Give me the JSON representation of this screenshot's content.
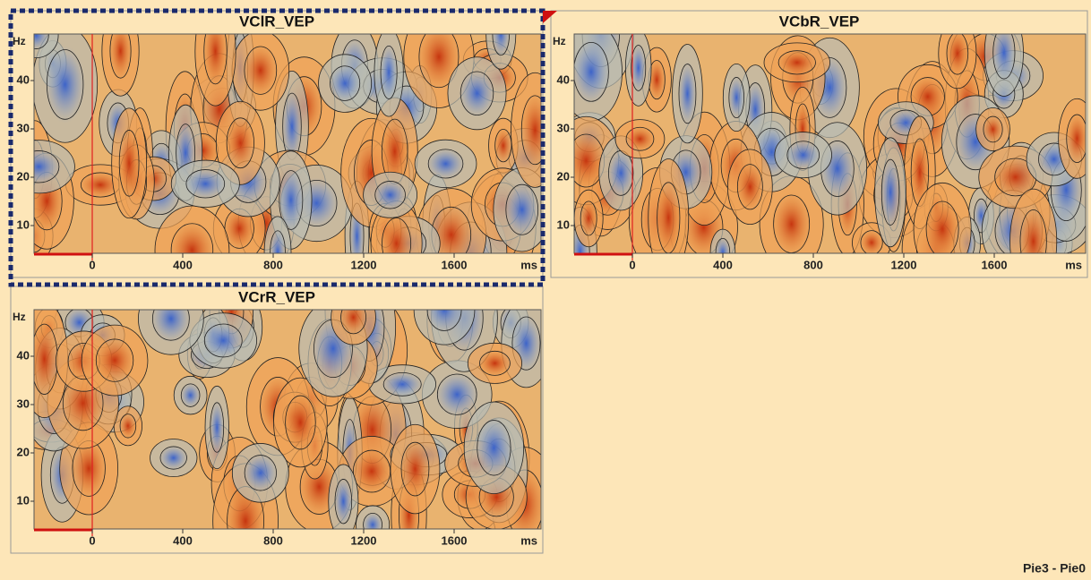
{
  "panels": [
    {
      "title": "VClR_VEP",
      "y_unit": "Hz",
      "x_unit": "ms",
      "yticks": [
        "40",
        "30",
        "20",
        "10"
      ],
      "xticks": [
        "0",
        "400",
        "800",
        "1200",
        "1600"
      ]
    },
    {
      "title": "VCbR_VEP",
      "y_unit": "Hz",
      "x_unit": "ms",
      "yticks": [
        "40",
        "30",
        "20",
        "10"
      ],
      "xticks": [
        "0",
        "400",
        "800",
        "1200",
        "1600"
      ]
    },
    {
      "title": "VCrR_VEP",
      "y_unit": "Hz",
      "x_unit": "ms",
      "yticks": [
        "40",
        "30",
        "20",
        "10"
      ],
      "xticks": [
        "0",
        "400",
        "800",
        "1200",
        "1600"
      ]
    }
  ],
  "footer": "Pie3 - Pie0"
}
